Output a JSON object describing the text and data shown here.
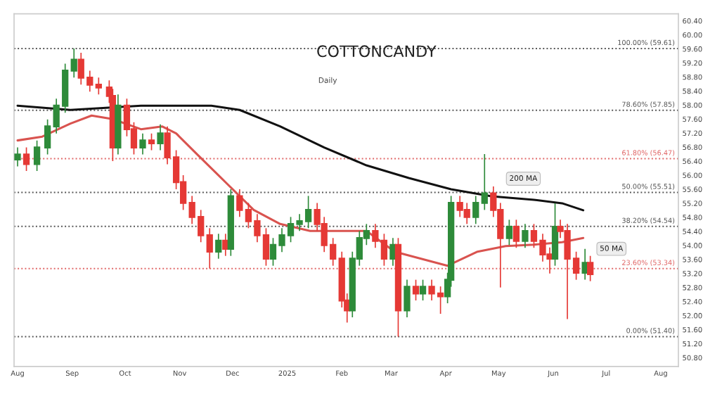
{
  "chart_data": {
    "type": "candlestick",
    "title": "COTTONCANDY",
    "subtitle": "Daily",
    "x": [
      "2024-08-01",
      "2024-08-06",
      "2024-08-12",
      "2024-08-18",
      "2024-08-23",
      "2024-08-28",
      "2024-09-02",
      "2024-09-06",
      "2024-09-11",
      "2024-09-16",
      "2024-09-22",
      "2024-09-24",
      "2024-09-27",
      "2024-10-02",
      "2024-10-06",
      "2024-10-11",
      "2024-10-16",
      "2024-10-21",
      "2024-10-25",
      "2024-10-30",
      "2024-11-03",
      "2024-11-08",
      "2024-11-13",
      "2024-11-18",
      "2024-11-23",
      "2024-11-27",
      "2024-11-30",
      "2024-12-05",
      "2024-12-10",
      "2024-12-15",
      "2024-12-20",
      "2024-12-24",
      "2024-12-29",
      "2025-01-03",
      "2025-01-08",
      "2025-01-13",
      "2025-01-18",
      "2025-01-22",
      "2025-01-27",
      "2025-02-01",
      "2025-02-04",
      "2025-02-07",
      "2025-02-11",
      "2025-02-15",
      "2025-02-20",
      "2025-02-25",
      "2025-03-02",
      "2025-03-05",
      "2025-03-10",
      "2025-03-15",
      "2025-03-19",
      "2025-03-24",
      "2025-03-29",
      "2025-04-02",
      "2025-04-04",
      "2025-04-09",
      "2025-04-13",
      "2025-04-18",
      "2025-04-23",
      "2025-04-28",
      "2025-05-02",
      "2025-05-07",
      "2025-05-11",
      "2025-05-16",
      "2025-05-21",
      "2025-05-26",
      "2025-05-30",
      "2025-06-02",
      "2025-06-05",
      "2025-06-09",
      "2025-06-14",
      "2025-06-19",
      "2025-06-22"
    ],
    "ohlc": [
      [
        56.45,
        56.79,
        56.25,
        56.59
      ],
      [
        56.59,
        56.79,
        56.12,
        56.32
      ],
      [
        56.32,
        56.99,
        56.12,
        56.79
      ],
      [
        56.79,
        57.59,
        56.59,
        57.39
      ],
      [
        57.39,
        58.18,
        57.19,
        57.98
      ],
      [
        57.98,
        59.18,
        57.78,
        58.98
      ],
      [
        58.98,
        59.61,
        58.78,
        59.29
      ],
      [
        59.29,
        59.49,
        58.58,
        58.78
      ],
      [
        58.78,
        58.98,
        58.38,
        58.58
      ],
      [
        58.58,
        58.78,
        58.3,
        58.5
      ],
      [
        58.5,
        58.7,
        58.06,
        58.26
      ],
      [
        58.26,
        58.46,
        56.4,
        56.79
      ],
      [
        56.79,
        58.3,
        56.59,
        57.98
      ],
      [
        57.98,
        58.18,
        57.11,
        57.31
      ],
      [
        57.31,
        57.51,
        56.59,
        56.79
      ],
      [
        56.79,
        57.19,
        56.59,
        56.99
      ],
      [
        56.99,
        57.19,
        56.71,
        56.91
      ],
      [
        56.91,
        57.45,
        56.71,
        57.19
      ],
      [
        57.19,
        57.39,
        56.31,
        56.51
      ],
      [
        56.51,
        56.71,
        55.6,
        55.8
      ],
      [
        55.8,
        56.0,
        55.01,
        55.21
      ],
      [
        55.21,
        55.41,
        54.61,
        54.81
      ],
      [
        54.81,
        55.01,
        54.09,
        54.29
      ],
      [
        54.29,
        54.49,
        53.34,
        53.82
      ],
      [
        53.82,
        54.33,
        53.62,
        54.13
      ],
      [
        54.13,
        54.33,
        53.7,
        53.9
      ],
      [
        53.9,
        55.6,
        53.7,
        55.4
      ],
      [
        55.4,
        55.6,
        54.81,
        55.01
      ],
      [
        55.01,
        55.21,
        54.49,
        54.69
      ],
      [
        54.69,
        54.89,
        54.09,
        54.29
      ],
      [
        54.29,
        54.49,
        53.42,
        53.62
      ],
      [
        53.62,
        54.21,
        53.42,
        54.01
      ],
      [
        54.01,
        54.49,
        53.81,
        54.29
      ],
      [
        54.29,
        54.81,
        54.09,
        54.61
      ],
      [
        54.61,
        54.89,
        54.41,
        54.69
      ],
      [
        54.69,
        55.41,
        54.49,
        55.01
      ],
      [
        55.01,
        55.21,
        54.41,
        54.61
      ],
      [
        54.61,
        54.81,
        53.81,
        54.01
      ],
      [
        54.01,
        54.21,
        53.42,
        53.62
      ],
      [
        53.62,
        53.82,
        52.23,
        52.43
      ],
      [
        52.43,
        52.63,
        51.8,
        52.15
      ],
      [
        52.15,
        53.82,
        51.95,
        53.62
      ],
      [
        53.62,
        54.41,
        53.42,
        54.21
      ],
      [
        54.21,
        54.61,
        54.01,
        54.41
      ],
      [
        54.41,
        54.61,
        53.93,
        54.13
      ],
      [
        54.13,
        54.33,
        53.42,
        53.62
      ],
      [
        53.62,
        54.21,
        53.42,
        54.01
      ],
      [
        54.01,
        54.21,
        51.4,
        52.15
      ],
      [
        52.15,
        53.02,
        51.95,
        52.82
      ],
      [
        52.82,
        53.02,
        52.43,
        52.63
      ],
      [
        52.63,
        53.02,
        52.43,
        52.82
      ],
      [
        52.82,
        53.02,
        52.43,
        52.63
      ],
      [
        52.63,
        52.83,
        52.05,
        52.55
      ],
      [
        52.55,
        53.22,
        52.35,
        53.02
      ],
      [
        53.02,
        55.41,
        52.82,
        55.21
      ],
      [
        55.21,
        55.41,
        54.81,
        55.01
      ],
      [
        55.01,
        55.21,
        54.61,
        54.81
      ],
      [
        54.81,
        55.41,
        54.61,
        55.21
      ],
      [
        55.21,
        56.6,
        55.01,
        55.48
      ],
      [
        55.48,
        55.68,
        54.81,
        55.01
      ],
      [
        55.01,
        55.21,
        52.8,
        54.21
      ],
      [
        54.21,
        54.73,
        54.01,
        54.53
      ],
      [
        54.53,
        54.73,
        53.93,
        54.13
      ],
      [
        54.13,
        54.61,
        53.93,
        54.41
      ],
      [
        54.41,
        54.61,
        53.93,
        54.13
      ],
      [
        54.13,
        54.33,
        53.54,
        53.74
      ],
      [
        53.74,
        53.94,
        53.2,
        53.62
      ],
      [
        53.62,
        55.2,
        53.42,
        54.53
      ],
      [
        54.53,
        54.73,
        54.21,
        54.41
      ],
      [
        54.41,
        54.61,
        51.9,
        53.62
      ],
      [
        53.62,
        53.82,
        53.02,
        53.22
      ],
      [
        53.22,
        53.9,
        53.02,
        53.5
      ],
      [
        53.5,
        53.7,
        52.98,
        53.18
      ]
    ],
    "series": [
      {
        "type": "line",
        "color": "#111111",
        "x": [
          "2024-08-01",
          "2024-08-31",
          "2024-10-10",
          "2024-11-19",
          "2024-12-05",
          "2024-12-28",
          "2025-01-22",
          "2025-02-15",
          "2025-03-11",
          "2025-04-04",
          "2025-04-27",
          "2025-05-21",
          "2025-06-06",
          "2025-06-18"
        ],
        "values": [
          57.98,
          57.86,
          57.98,
          57.98,
          57.86,
          57.39,
          56.79,
          56.28,
          55.92,
          55.6,
          55.4,
          55.3,
          55.2,
          55.0
        ]
      },
      {
        "type": "line",
        "color": "#d9534f",
        "x": [
          "2024-08-01",
          "2024-08-15",
          "2024-08-31",
          "2024-09-12",
          "2024-09-24",
          "2024-10-10",
          "2024-10-22",
          "2024-10-30",
          "2024-11-11",
          "2024-11-27",
          "2024-12-13",
          "2024-12-28",
          "2025-01-14",
          "2025-01-30",
          "2025-02-15",
          "2025-03-03",
          "2025-03-18",
          "2025-04-02",
          "2025-04-19",
          "2025-05-05",
          "2025-05-21",
          "2025-06-06",
          "2025-06-18"
        ],
        "values": [
          56.99,
          57.1,
          57.47,
          57.7,
          57.6,
          57.31,
          57.39,
          57.19,
          56.59,
          55.8,
          55.01,
          54.61,
          54.41,
          54.41,
          54.41,
          53.82,
          53.62,
          53.42,
          53.82,
          53.98,
          54.02,
          54.09,
          54.21
        ]
      }
    ],
    "ref_lines": [
      {
        "axis": "y",
        "value": 59.61,
        "label": "100.00% (59.61)",
        "color": "#555555",
        "line_style": "dotted"
      },
      {
        "axis": "y",
        "value": 57.85,
        "label": "78.60% (57.85)",
        "color": "#555555",
        "line_style": "dotted"
      },
      {
        "axis": "y",
        "value": 56.47,
        "label": "61.80% (56.47)",
        "color": "#e06666",
        "line_style": "dotted"
      },
      {
        "axis": "y",
        "value": 55.51,
        "label": "50.00% (55.51)",
        "color": "#555555",
        "line_style": "dotted"
      },
      {
        "axis": "y",
        "value": 54.54,
        "label": "38.20% (54.54)",
        "color": "#555555",
        "line_style": "dotted"
      },
      {
        "axis": "y",
        "value": 53.34,
        "label": "23.60% (53.34)",
        "color": "#e06666",
        "line_style": "dotted"
      },
      {
        "axis": "y",
        "value": 51.4,
        "label": "0.00% (51.40)",
        "color": "#555555",
        "line_style": "dotted"
      }
    ],
    "annotations": [
      {
        "text": "200 MA",
        "x": "2025-05-15",
        "y": 55.9
      },
      {
        "text": "50 MA",
        "x": "2025-07-04",
        "y": 53.9
      }
    ],
    "xlim": [
      "2024-07-30",
      "2025-08-11"
    ],
    "xticks": [
      {
        "value": "2024-08-01",
        "label": "Aug"
      },
      {
        "value": "2024-09-01",
        "label": "Sep"
      },
      {
        "value": "2024-10-01",
        "label": "Oct"
      },
      {
        "value": "2024-11-01",
        "label": "Nov"
      },
      {
        "value": "2024-12-01",
        "label": "Dec"
      },
      {
        "value": "2025-01-01",
        "label": "2025"
      },
      {
        "value": "2025-02-01",
        "label": "Feb"
      },
      {
        "value": "2025-03-01",
        "label": "Mar"
      },
      {
        "value": "2025-04-01",
        "label": "Apr"
      },
      {
        "value": "2025-05-01",
        "label": "May"
      },
      {
        "value": "2025-06-01",
        "label": "Jun"
      },
      {
        "value": "2025-07-01",
        "label": "Jul"
      },
      {
        "value": "2025-08-01",
        "label": "Aug"
      }
    ],
    "ylim": [
      50.55,
      60.6
    ],
    "yticks": [
      {
        "value": 50.8,
        "label": "50.80"
      },
      {
        "value": 51.2,
        "label": "51.20"
      },
      {
        "value": 51.6,
        "label": "51.60"
      },
      {
        "value": 52.0,
        "label": "52.00"
      },
      {
        "value": 52.4,
        "label": "52.40"
      },
      {
        "value": 52.8,
        "label": "52.80"
      },
      {
        "value": 53.2,
        "label": "53.20"
      },
      {
        "value": 53.6,
        "label": "53.60"
      },
      {
        "value": 54.0,
        "label": "54.00"
      },
      {
        "value": 54.4,
        "label": "54.40"
      },
      {
        "value": 54.8,
        "label": "54.80"
      },
      {
        "value": 55.2,
        "label": "55.20"
      },
      {
        "value": 55.6,
        "label": "55.60"
      },
      {
        "value": 56.0,
        "label": "56.00"
      },
      {
        "value": 56.4,
        "label": "56.40"
      },
      {
        "value": 56.8,
        "label": "56.80"
      },
      {
        "value": 57.2,
        "label": "57.20"
      },
      {
        "value": 57.6,
        "label": "57.60"
      },
      {
        "value": 58.0,
        "label": "58.00"
      },
      {
        "value": 58.4,
        "label": "58.40"
      },
      {
        "value": 58.8,
        "label": "58.80"
      },
      {
        "value": 59.2,
        "label": "59.20"
      },
      {
        "value": 59.6,
        "label": "59.60"
      },
      {
        "value": 60.0,
        "label": "60.00"
      },
      {
        "value": 60.4,
        "label": "60.40"
      }
    ],
    "grid": false
  }
}
